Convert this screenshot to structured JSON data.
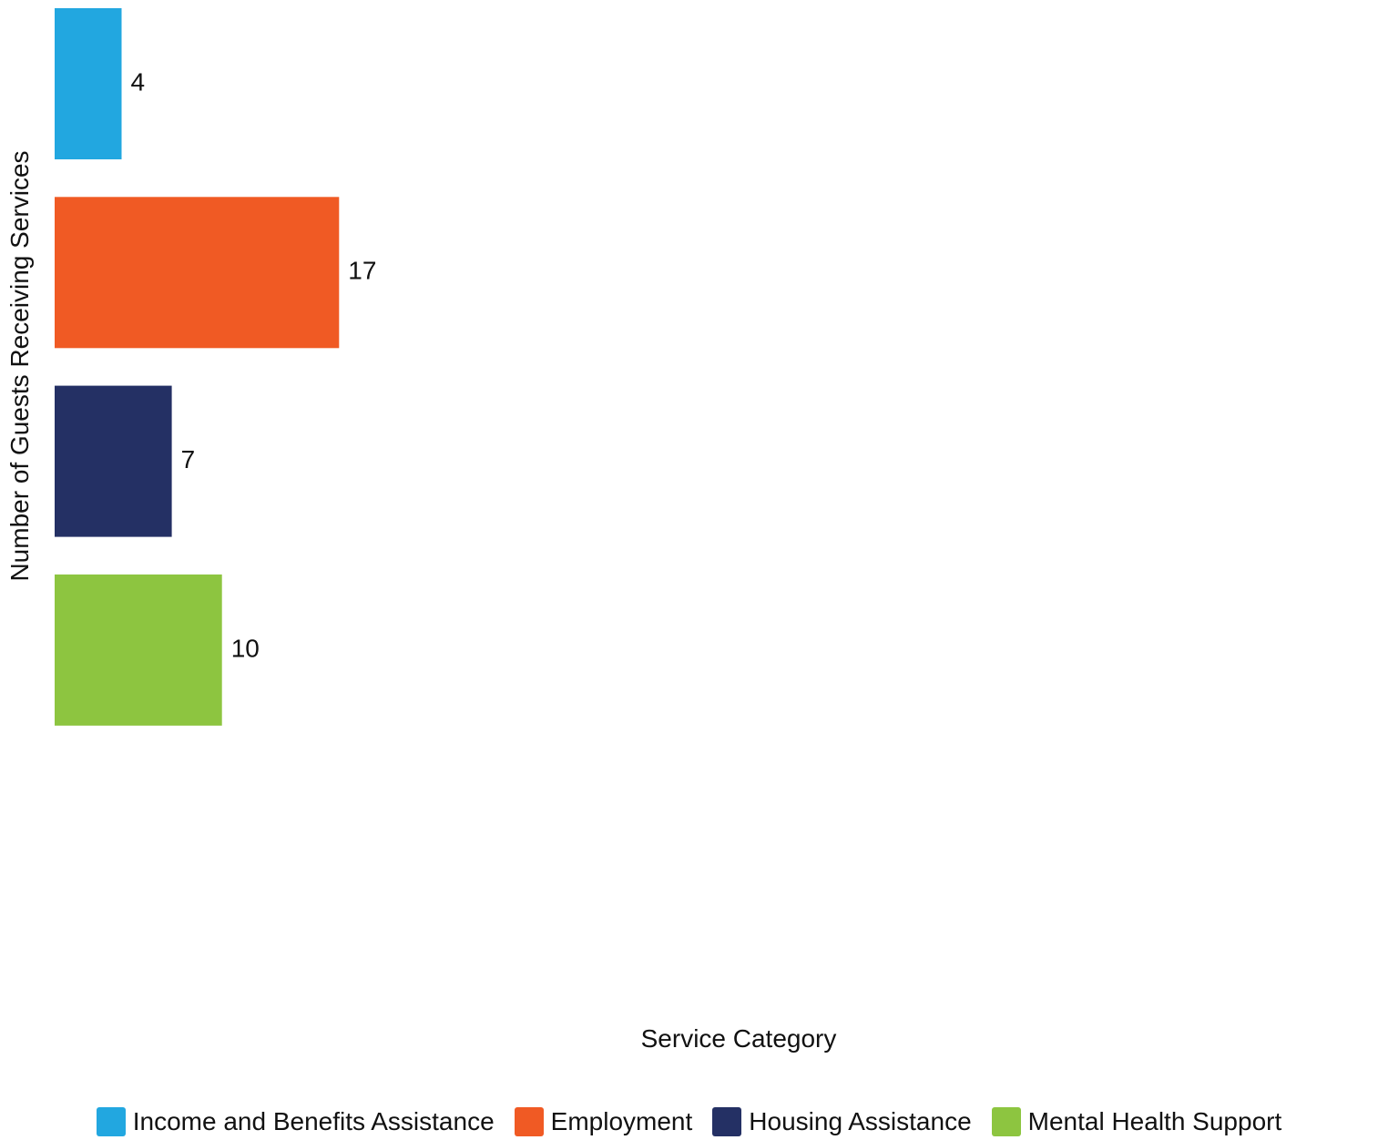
{
  "chart_data": {
    "type": "bar",
    "orientation": "horizontal",
    "categories": [
      "Income and Benefits Assistance",
      "Employment",
      "Housing Assistance",
      "Mental Health Support"
    ],
    "values": [
      4,
      17,
      7,
      10
    ],
    "colors": [
      "#22a7e0",
      "#f05a24",
      "#243064",
      "#8dc540"
    ],
    "xlabel": "Service Category",
    "ylabel": "Number of Guests Receiving Services",
    "data_labels": [
      "4",
      "17",
      "7",
      "10"
    ],
    "xlim": [
      0,
      78
    ],
    "grid": false,
    "legend_position": "bottom"
  }
}
